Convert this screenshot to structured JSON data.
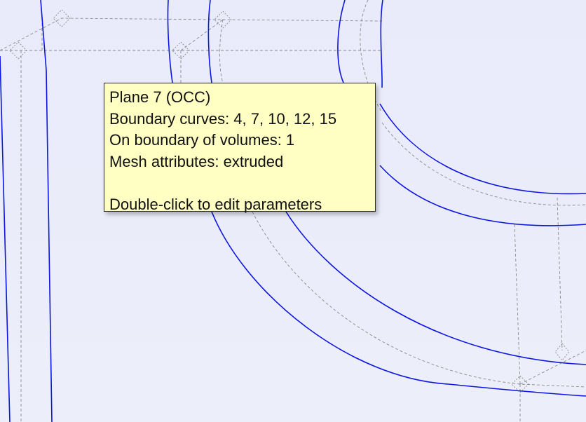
{
  "tooltip": {
    "entity": "Plane 7 (OCC)",
    "boundary_curves": "Boundary curves: 4, 7, 10, 12, 15",
    "volumes": "On boundary of volumes: 1",
    "mesh_attributes": "Mesh attributes: extruded",
    "hint": "Double-click to edit parameters"
  },
  "colors": {
    "curve": "#0b14e0",
    "guide": "#8a8a8a",
    "tooltip_bg": "#ffffc4",
    "background": "#e9ebfb"
  }
}
